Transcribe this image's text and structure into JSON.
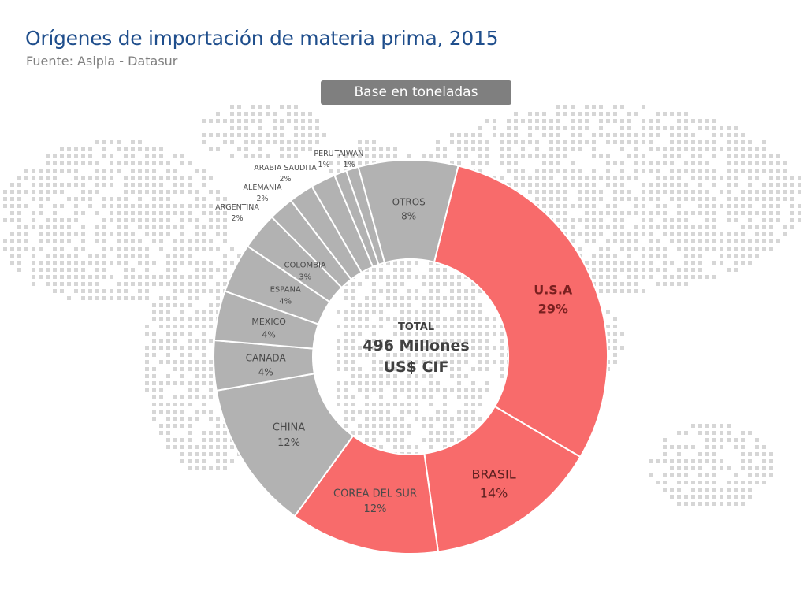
{
  "header": {
    "title": "Orígenes de importación de materia prima, 2015",
    "subtitle": "Fuente: Asipla - Datasur",
    "badge": "Base en toneladas"
  },
  "colors": {
    "highlight": "#f86b6b",
    "neutral": "#b2b2b2",
    "separator": "#ffffff",
    "title": "#1f4e8c",
    "map_dots": "#d6d6d6"
  },
  "chart_data": {
    "type": "pie",
    "donut": true,
    "title": "Orígenes de importación de materia prima, 2015",
    "center_label": {
      "line1": "TOTAL",
      "line2": "496 Millones",
      "line3": "US$ CIF"
    },
    "slices": [
      {
        "label": "U.S.A",
        "value": 29,
        "display": "29%",
        "highlight": true
      },
      {
        "label": "BRASIL",
        "value": 14,
        "display": "14%",
        "highlight": true
      },
      {
        "label": "COREA DEL SUR",
        "value": 12,
        "display": "12%",
        "highlight": true
      },
      {
        "label": "CHINA",
        "value": 12,
        "display": "12%",
        "highlight": false
      },
      {
        "label": "CANADA",
        "value": 4,
        "display": "4%",
        "highlight": false
      },
      {
        "label": "MEXICO",
        "value": 4,
        "display": "4%",
        "highlight": false
      },
      {
        "label": "ESPANA",
        "value": 4,
        "display": "4%",
        "highlight": false
      },
      {
        "label": "COLOMBIA",
        "value": 3,
        "display": "3%",
        "highlight": false
      },
      {
        "label": "ARGENTINA",
        "value": 2,
        "display": "2%",
        "highlight": false
      },
      {
        "label": "ALEMANIA",
        "value": 2,
        "display": "2%",
        "highlight": false
      },
      {
        "label": "ARABIA SAUDITA",
        "value": 2,
        "display": "2%",
        "highlight": false
      },
      {
        "label": "PERU",
        "value": 1,
        "display": "1%",
        "highlight": false
      },
      {
        "label": "TAIWAN",
        "value": 1,
        "display": "1%",
        "highlight": false
      },
      {
        "label": "OTROS",
        "value": 8,
        "display": "8%",
        "highlight": false
      }
    ]
  }
}
